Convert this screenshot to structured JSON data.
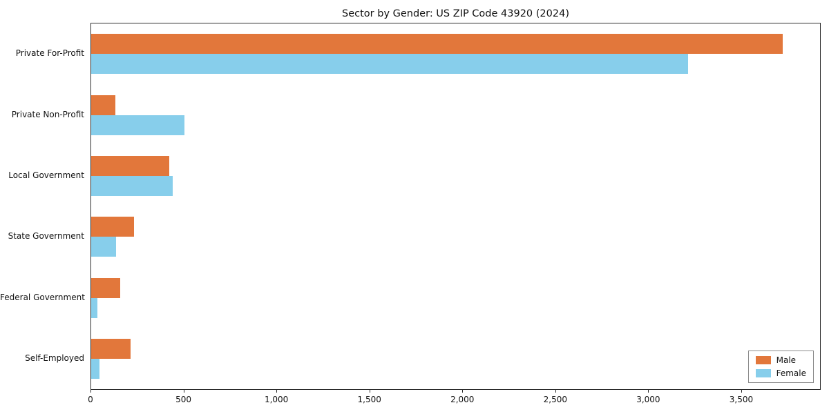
{
  "title": "Sector by Gender: US ZIP Code 43920 (2024)",
  "chart_data": {
    "type": "bar",
    "orientation": "horizontal",
    "title": "Sector by Gender: US ZIP Code 43920 (2024)",
    "categories": [
      "Private For-Profit",
      "Private Non-Profit",
      "Local Government",
      "State Government",
      "Federal Government",
      "Self-Employed"
    ],
    "series": [
      {
        "name": "Male",
        "color": "#e2773b",
        "values": [
          3720,
          130,
          420,
          230,
          155,
          210
        ]
      },
      {
        "name": "Female",
        "color": "#87ceeb",
        "values": [
          3210,
          500,
          440,
          135,
          35,
          45
        ]
      }
    ],
    "xlabel": "",
    "ylabel": "",
    "xlim": [
      0,
      3920
    ],
    "xticks": [
      0,
      500,
      1000,
      1500,
      2000,
      2500,
      3000,
      3500
    ],
    "xtick_labels": [
      "0",
      "500",
      "1,000",
      "1,500",
      "2,000",
      "2,500",
      "3,000",
      "3,500"
    ],
    "grid": false,
    "legend_position": "lower right",
    "legend_labels": [
      "Male",
      "Female"
    ]
  }
}
